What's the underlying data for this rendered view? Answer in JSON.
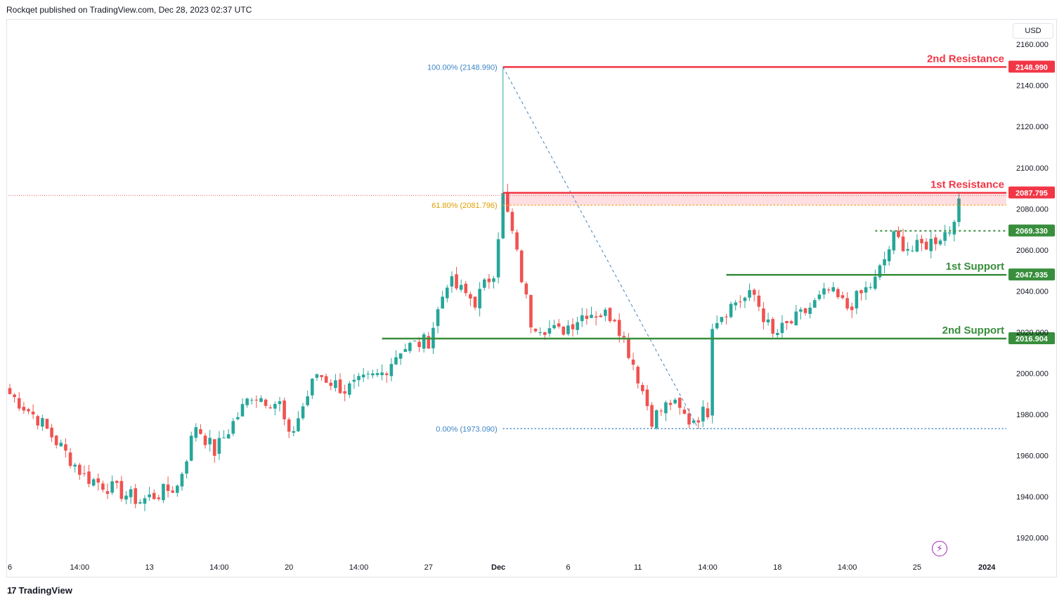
{
  "header": {
    "published": "Rockqet published on TradingView.com, Dec 28, 2023 02:37 UTC"
  },
  "footer": {
    "logo_glyph": "17",
    "brand": "TradingView"
  },
  "currency": "USD",
  "colors": {
    "up": "#26a69a",
    "down": "#ef5350",
    "resistance": "#f23645",
    "support": "#388e3c",
    "fib_blue": "#2962ff",
    "fib_gold": "#f5a623",
    "axis_text": "#131722"
  },
  "chart_data": {
    "type": "candlestick",
    "title": "",
    "y_axis": {
      "ticks": [
        1920,
        1940,
        1960,
        1980,
        2000,
        2020,
        2040,
        2060,
        2080,
        2100,
        2120,
        2140,
        2160
      ],
      "tick_labels": [
        "1920.000",
        "1940.000",
        "1960.000",
        "1980.000",
        "2000.000",
        "2020.000",
        "2040.000",
        "2060.000",
        "2080.000",
        "2100.000",
        "2120.000",
        "2140.000",
        "2160.000"
      ],
      "range": [
        1910,
        2172
      ]
    },
    "x_axis": {
      "labels": [
        {
          "label": "6",
          "bar": 0
        },
        {
          "label": "14:00",
          "bar": 15
        },
        {
          "label": "13",
          "bar": 30
        },
        {
          "label": "14:00",
          "bar": 45
        },
        {
          "label": "20",
          "bar": 60
        },
        {
          "label": "14:00",
          "bar": 75
        },
        {
          "label": "27",
          "bar": 90
        },
        {
          "label": "Dec",
          "bar": 105
        },
        {
          "label": "6",
          "bar": 120
        },
        {
          "label": "11",
          "bar": 135
        },
        {
          "label": "14:00",
          "bar": 150
        },
        {
          "label": "18",
          "bar": 165
        },
        {
          "label": "14:00",
          "bar": 180
        },
        {
          "label": "25",
          "bar": 195
        },
        {
          "label": "2024",
          "bar": 210
        }
      ]
    },
    "levels": [
      {
        "name": "2nd Resistance",
        "value": 2148.99,
        "label": "2148.990",
        "color": "#f23645"
      },
      {
        "name": "1st Resistance",
        "value": 2087.795,
        "label": "2087.795",
        "color": "#f23645"
      },
      {
        "name": "",
        "value": 2069.33,
        "label": "2069.330",
        "color": "#388e3c"
      },
      {
        "name": "1st Support",
        "value": 2047.935,
        "label": "2047.935",
        "color": "#388e3c"
      },
      {
        "name": "2nd Support",
        "value": 2016.904,
        "label": "2016.904",
        "color": "#388e3c"
      }
    ],
    "fib": [
      {
        "label": "100.00% (2148.990)",
        "value": 2148.99
      },
      {
        "label": "61.80% (2081.796)",
        "value": 2081.796
      },
      {
        "label": "0.00% (1973.090)",
        "value": 1973.09
      }
    ],
    "anchors": [
      {
        "bar": 0,
        "price": 1990
      },
      {
        "bar": 6,
        "price": 1978
      },
      {
        "bar": 16,
        "price": 1950
      },
      {
        "bar": 28,
        "price": 1938
      },
      {
        "bar": 36,
        "price": 1945
      },
      {
        "bar": 40,
        "price": 1975
      },
      {
        "bar": 44,
        "price": 1962
      },
      {
        "bar": 52,
        "price": 1990
      },
      {
        "bar": 58,
        "price": 1985
      },
      {
        "bar": 60,
        "price": 1968
      },
      {
        "bar": 66,
        "price": 2000
      },
      {
        "bar": 72,
        "price": 1992
      },
      {
        "bar": 80,
        "price": 2000
      },
      {
        "bar": 84,
        "price": 2012
      },
      {
        "bar": 90,
        "price": 2016
      },
      {
        "bar": 94,
        "price": 2045
      },
      {
        "bar": 100,
        "price": 2035
      },
      {
        "bar": 104,
        "price": 2050
      },
      {
        "bar": 106,
        "price": 2086
      },
      {
        "bar": 108,
        "price": 2068
      },
      {
        "bar": 112,
        "price": 2025
      },
      {
        "bar": 118,
        "price": 2020
      },
      {
        "bar": 124,
        "price": 2030
      },
      {
        "bar": 130,
        "price": 2028
      },
      {
        "bar": 134,
        "price": 2005
      },
      {
        "bar": 138,
        "price": 1978
      },
      {
        "bar": 142,
        "price": 1986
      },
      {
        "bar": 146,
        "price": 1977
      },
      {
        "bar": 150,
        "price": 1982
      },
      {
        "bar": 151,
        "price": 2025
      },
      {
        "bar": 156,
        "price": 2035
      },
      {
        "bar": 160,
        "price": 2038
      },
      {
        "bar": 164,
        "price": 2018
      },
      {
        "bar": 170,
        "price": 2028
      },
      {
        "bar": 176,
        "price": 2040
      },
      {
        "bar": 180,
        "price": 2032
      },
      {
        "bar": 186,
        "price": 2045
      },
      {
        "bar": 190,
        "price": 2066
      },
      {
        "bar": 194,
        "price": 2060
      },
      {
        "bar": 198,
        "price": 2064
      },
      {
        "bar": 202,
        "price": 2070
      },
      {
        "bar": 204,
        "price": 2085
      }
    ],
    "bar_count": 210
  }
}
